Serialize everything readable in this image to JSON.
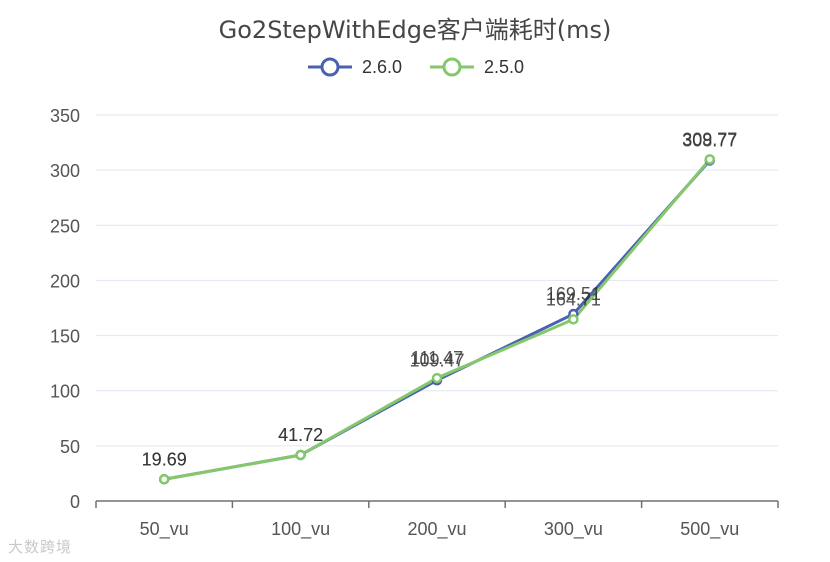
{
  "chart_data": {
    "type": "line",
    "title": "Go2StepWithEdge客户端耗时(ms)",
    "categories": [
      "50_vu",
      "100_vu",
      "200_vu",
      "300_vu",
      "500_vu"
    ],
    "ylim": [
      0,
      350
    ],
    "yticks": [
      0,
      50,
      100,
      150,
      200,
      250,
      300,
      350
    ],
    "grid": true,
    "legend_position": "top-center",
    "series": [
      {
        "name": "2.6.0",
        "color": "#4a60b0",
        "values": [
          19.69,
          41.72,
          109.47,
          169.51,
          308.77
        ],
        "labels": [
          "19.69",
          "41.72",
          "109.47",
          "169.51",
          "308.77"
        ]
      },
      {
        "name": "2.5.0",
        "color": "#85c86b",
        "values": [
          19.69,
          41.72,
          111.47,
          164.71,
          309.77
        ],
        "labels": [
          "19.69",
          "41.72",
          "111.47",
          "164.71",
          "309.77"
        ]
      }
    ]
  },
  "watermark": "大数跨境"
}
